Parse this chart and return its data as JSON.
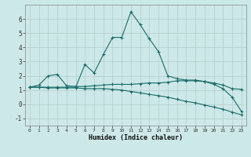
{
  "xlabel": "Humidex (Indice chaleur)",
  "bg_color": "#cde8e8",
  "grid_color": "#b8d0d0",
  "line_color": "#1a6b6b",
  "xlim": [
    -0.5,
    23.5
  ],
  "ylim": [
    -1.5,
    7.0
  ],
  "xticks": [
    0,
    1,
    2,
    3,
    4,
    5,
    6,
    7,
    8,
    9,
    10,
    11,
    12,
    13,
    14,
    15,
    16,
    17,
    18,
    19,
    20,
    21,
    22,
    23
  ],
  "yticks": [
    -1,
    0,
    1,
    2,
    3,
    4,
    5,
    6
  ],
  "line1_x": [
    0,
    1,
    2,
    3,
    4,
    5,
    6,
    7,
    8,
    9,
    10,
    11,
    12,
    13,
    14,
    15,
    16,
    17,
    18,
    19,
    20,
    21,
    22,
    23
  ],
  "line1_y": [
    1.2,
    1.35,
    2.0,
    2.1,
    1.3,
    1.25,
    1.25,
    1.3,
    1.35,
    1.4,
    1.4,
    1.4,
    1.45,
    1.5,
    1.5,
    1.55,
    1.65,
    1.65,
    1.65,
    1.6,
    1.5,
    1.35,
    1.1,
    1.05
  ],
  "line2_x": [
    0,
    1,
    2,
    3,
    4,
    5,
    6,
    7,
    8,
    9,
    10,
    11,
    12,
    13,
    14,
    15,
    16,
    17,
    18,
    19,
    20,
    21,
    22,
    23
  ],
  "line2_y": [
    1.2,
    1.2,
    1.2,
    1.2,
    1.2,
    1.2,
    2.8,
    2.2,
    3.5,
    4.7,
    4.7,
    6.5,
    5.6,
    4.6,
    3.7,
    2.0,
    1.8,
    1.7,
    1.7,
    1.6,
    1.4,
    1.1,
    0.5,
    -0.5
  ],
  "line3_x": [
    0,
    1,
    2,
    3,
    4,
    5,
    6,
    7,
    8,
    9,
    10,
    11,
    12,
    13,
    14,
    15,
    16,
    17,
    18,
    19,
    20,
    21,
    22,
    23
  ],
  "line3_y": [
    1.2,
    1.2,
    1.15,
    1.15,
    1.15,
    1.15,
    1.1,
    1.1,
    1.1,
    1.05,
    1.0,
    0.9,
    0.8,
    0.7,
    0.6,
    0.5,
    0.35,
    0.2,
    0.1,
    -0.05,
    -0.2,
    -0.35,
    -0.55,
    -0.75
  ]
}
